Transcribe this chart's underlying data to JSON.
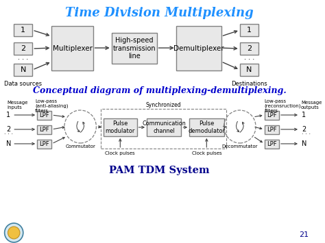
{
  "title": "Time Division Multiplexing",
  "title_color": "#1E90FF",
  "subtitle": "Conceptual diagram of multiplexing-demultiplexing.",
  "subtitle_color": "#0000CD",
  "bottom_label": "PAM TDM System",
  "bottom_label_color": "#00008B",
  "page_number": "21",
  "bg_color": "#FFFFFF",
  "box_color": "#808080",
  "box_facecolor": "#E8E8E8",
  "arrow_color": "#404040"
}
